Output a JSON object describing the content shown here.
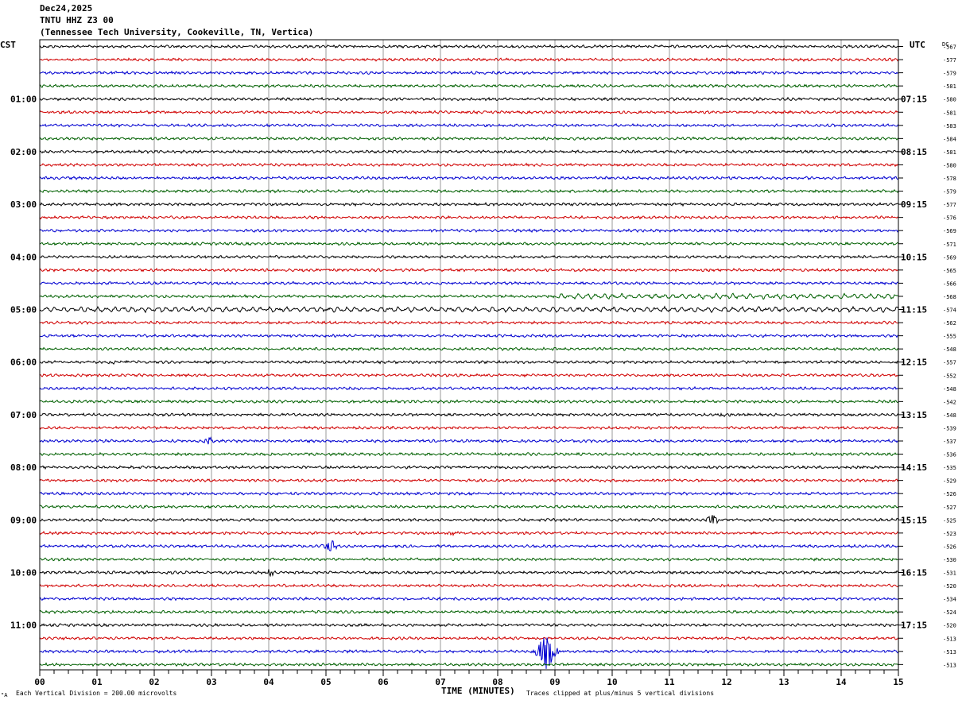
{
  "header": {
    "date": "Dec24,2025",
    "station": "TNTU HHZ Z3 00",
    "location": "(Tennessee Tech University, Cookeville, TN, Vertica)"
  },
  "left_tz": "CST",
  "right_tz": "UTC",
  "dc_label": "DC",
  "footer": {
    "scale": "Each Vertical Division =  200.00 microvolts",
    "xlabel": "TIME (MINUTES)",
    "clip_note": "Traces clipped at plus/minus 5 vertical divisions",
    "corner_mark": "\"A"
  },
  "colors": {
    "trace_cycle": [
      "#000000",
      "#d00000",
      "#0000d0",
      "#006000"
    ],
    "grid": "#9a9a9a",
    "frame": "#000000"
  },
  "chart_data": {
    "type": "line",
    "title": "TNTU HHZ Z3 00",
    "xlabel": "TIME (MINUTES)",
    "xlim": [
      0,
      15
    ],
    "x_ticks": [
      "00",
      "01",
      "02",
      "03",
      "04",
      "05",
      "06",
      "07",
      "08",
      "09",
      "10",
      "11",
      "12",
      "13",
      "14",
      "15"
    ],
    "left_time_labels": [
      {
        "trace": 4,
        "label": "01:00"
      },
      {
        "trace": 8,
        "label": "02:00"
      },
      {
        "trace": 12,
        "label": "03:00"
      },
      {
        "trace": 16,
        "label": "04:00"
      },
      {
        "trace": 20,
        "label": "05:00"
      },
      {
        "trace": 24,
        "label": "06:00"
      },
      {
        "trace": 28,
        "label": "07:00"
      },
      {
        "trace": 32,
        "label": "08:00"
      },
      {
        "trace": 36,
        "label": "09:00"
      },
      {
        "trace": 40,
        "label": "10:00"
      },
      {
        "trace": 44,
        "label": "11:00"
      }
    ],
    "right_time_labels": [
      {
        "trace": 4,
        "label": "07:15"
      },
      {
        "trace": 8,
        "label": "08:15"
      },
      {
        "trace": 12,
        "label": "09:15"
      },
      {
        "trace": 16,
        "label": "10:15"
      },
      {
        "trace": 20,
        "label": "11:15"
      },
      {
        "trace": 24,
        "label": "12:15"
      },
      {
        "trace": 28,
        "label": "13:15"
      },
      {
        "trace": 32,
        "label": "14:15"
      },
      {
        "trace": 36,
        "label": "15:15"
      },
      {
        "trace": 40,
        "label": "16:15"
      },
      {
        "trace": 44,
        "label": "17:15"
      }
    ],
    "dc_offsets": [
      -567,
      -577,
      -579,
      -581,
      -580,
      -581,
      -583,
      -584,
      -581,
      -580,
      -578,
      -579,
      -577,
      -576,
      -569,
      -571,
      -569,
      -565,
      -566,
      -568,
      -574,
      -562,
      -555,
      -548,
      -557,
      -552,
      -548,
      -542,
      -548,
      -539,
      -537,
      -536,
      -535,
      -529,
      -526,
      -527,
      -525,
      -523,
      -526,
      -530,
      -531,
      -520,
      -534,
      -524,
      -520,
      -513,
      -513,
      -513
    ],
    "trace_count": 48,
    "minutes_per_trace": 15,
    "events": [
      {
        "trace": 20,
        "start_min": 0.0,
        "end_min": 15.0,
        "amp": 0.33,
        "kind": "microseism"
      },
      {
        "trace": 19,
        "start_min": 9.0,
        "end_min": 15.0,
        "amp": 0.33,
        "kind": "microseism"
      },
      {
        "trace": 24,
        "start_min": 1.0,
        "end_min": 1.7,
        "amp": 0.1,
        "kind": "burst"
      },
      {
        "trace": 28,
        "start_min": 11.7,
        "end_min": 12.1,
        "amp": 0.12,
        "kind": "burst"
      },
      {
        "trace": 30,
        "start_min": 2.85,
        "end_min": 3.05,
        "amp": 0.35,
        "kind": "burst"
      },
      {
        "trace": 36,
        "start_min": 11.6,
        "end_min": 11.9,
        "amp": 0.4,
        "kind": "burst"
      },
      {
        "trace": 37,
        "start_min": 7.0,
        "end_min": 7.6,
        "amp": 0.18,
        "kind": "burst"
      },
      {
        "trace": 38,
        "start_min": 4.9,
        "end_min": 5.25,
        "amp": 0.45,
        "kind": "burst"
      },
      {
        "trace": 40,
        "start_min": 3.95,
        "end_min": 4.15,
        "amp": 0.4,
        "kind": "burst"
      },
      {
        "trace": 46,
        "start_min": 8.6,
        "end_min": 9.1,
        "amp": 1.3,
        "kind": "burst"
      }
    ]
  }
}
